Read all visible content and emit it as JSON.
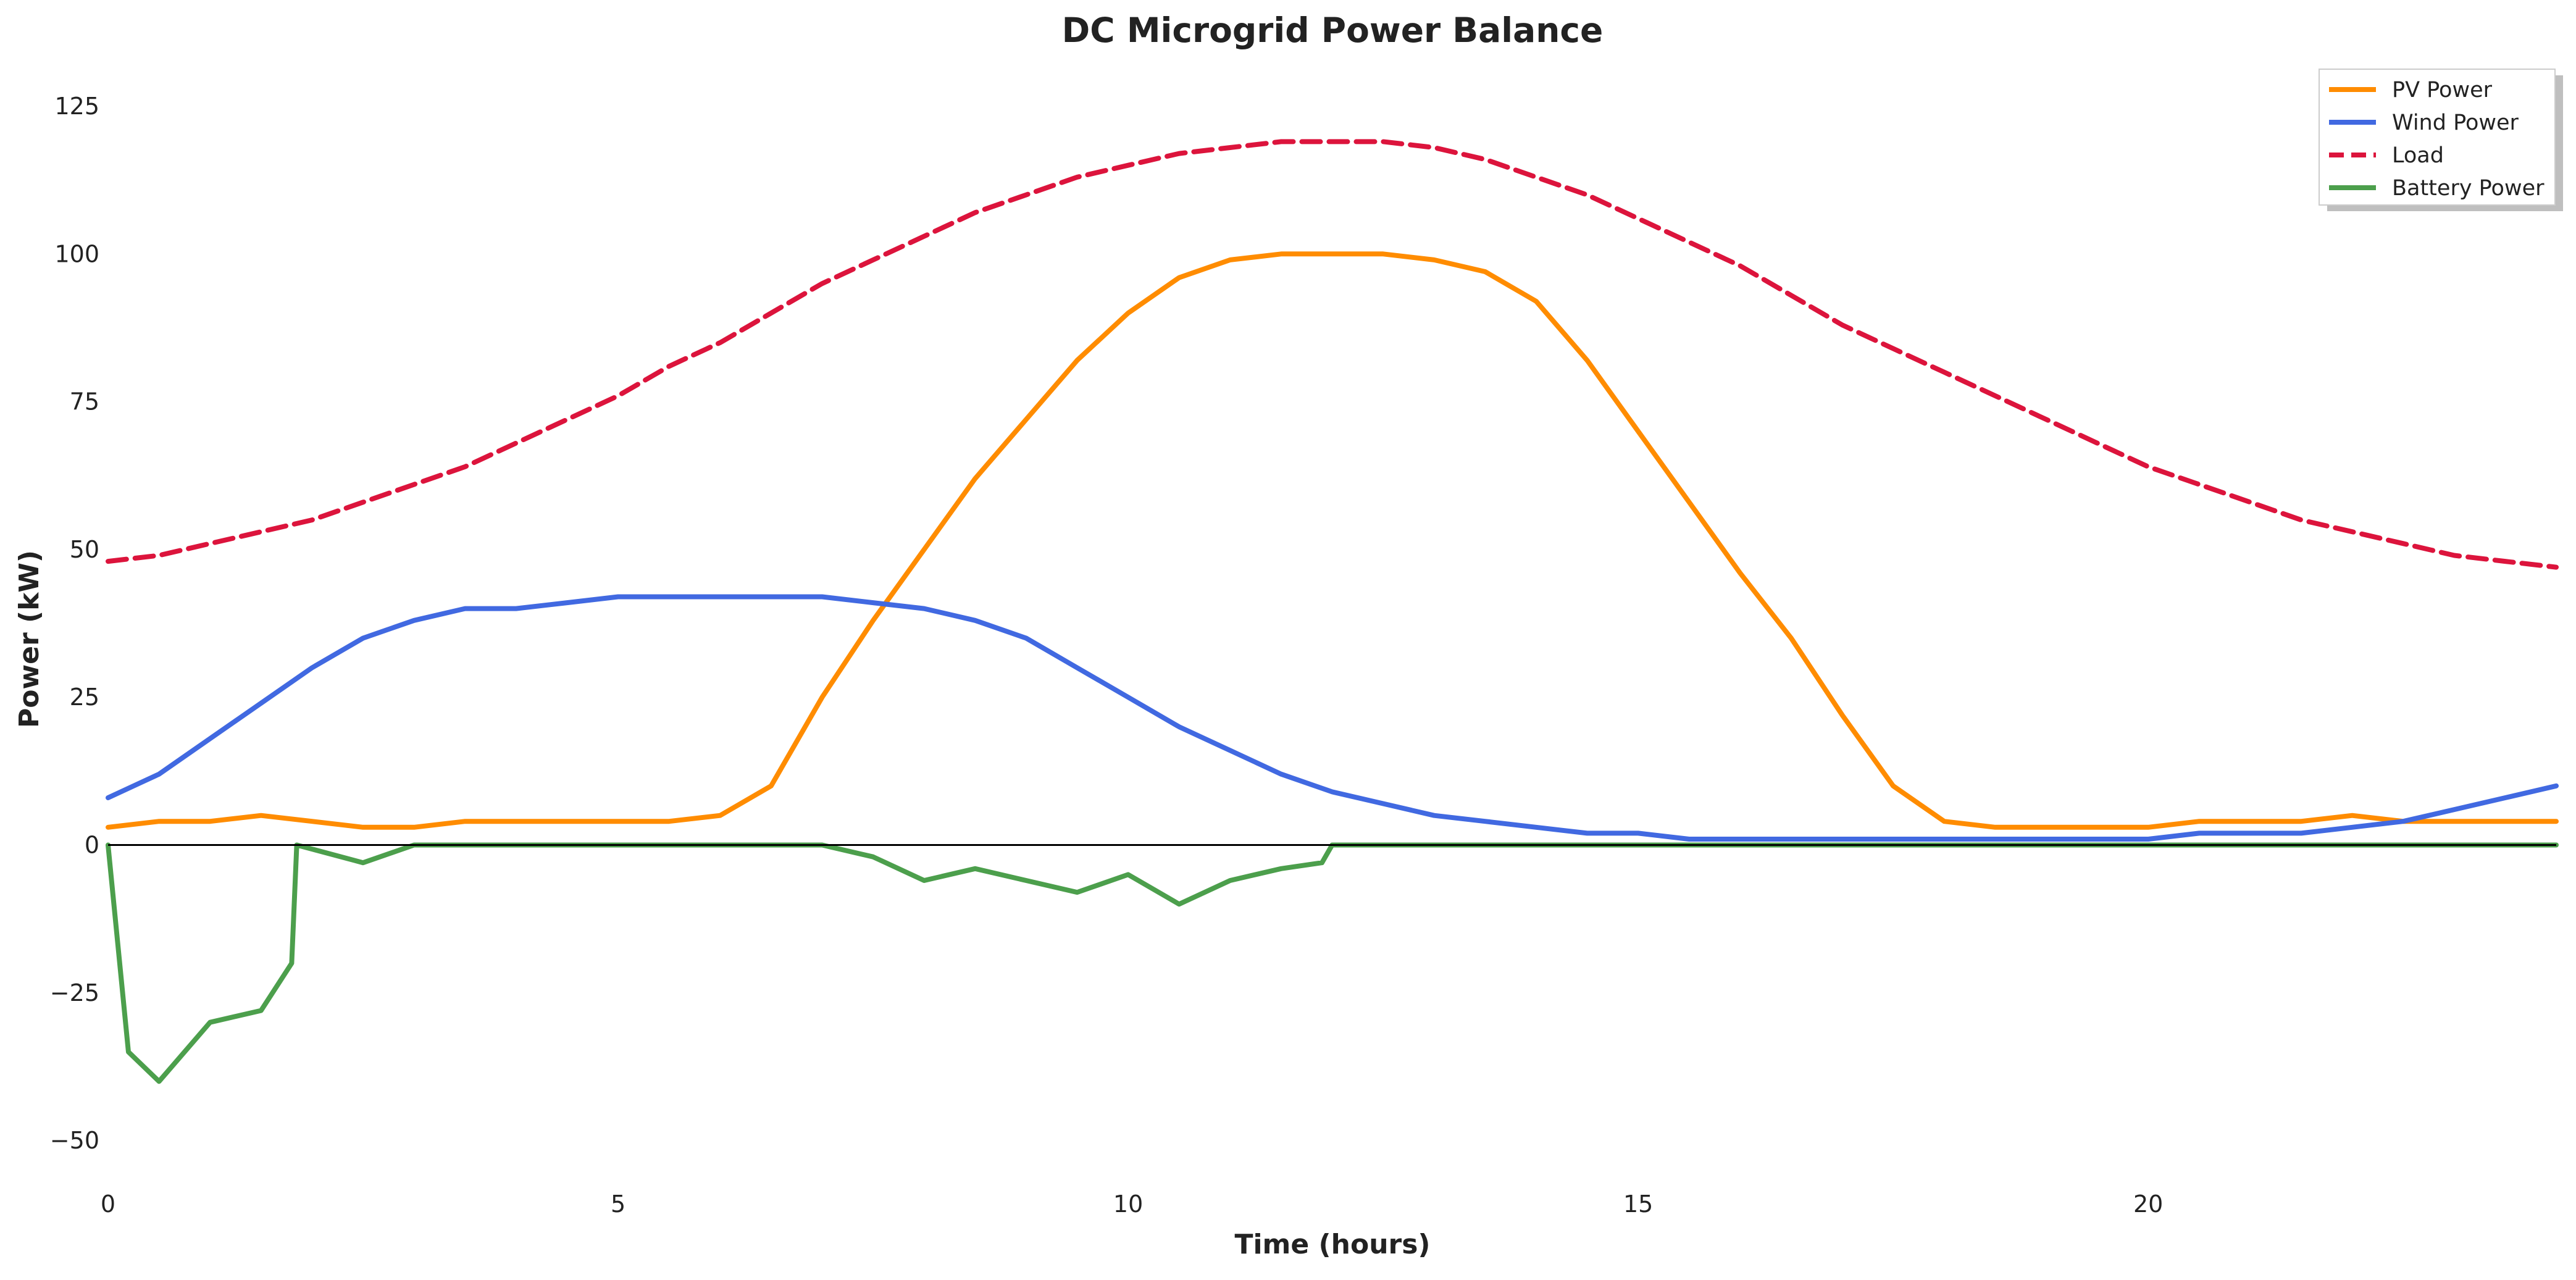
{
  "chart_data": {
    "type": "line",
    "title": "DC Microgrid Power Balance",
    "xlabel": "Time (hours)",
    "ylabel": "Power (kW)",
    "xlim": [
      0,
      24
    ],
    "ylim": [
      -55,
      132
    ],
    "xticks": [
      0,
      5,
      10,
      15,
      20
    ],
    "xtick_labels": [
      "0",
      "5",
      "10",
      "15",
      "20"
    ],
    "yticks": [
      -50,
      -25,
      0,
      25,
      50,
      75,
      100,
      125
    ],
    "ytick_labels": [
      "−50",
      "−25",
      "0",
      "25",
      "50",
      "75",
      "100",
      "125"
    ],
    "grid": false,
    "legend_position": "top-right",
    "zero_line_color": "#000000",
    "series": [
      {
        "name": "PV Power",
        "color": "#ff8c00",
        "style": "solid",
        "x": [
          0,
          0.5,
          1,
          1.5,
          2,
          2.5,
          3,
          3.5,
          4,
          4.5,
          5,
          5.5,
          6,
          6.5,
          7,
          7.5,
          8,
          8.5,
          9,
          9.5,
          10,
          10.5,
          11,
          11.5,
          12,
          12.5,
          13,
          13.5,
          14,
          14.5,
          15,
          15.5,
          16,
          16.5,
          17,
          17.5,
          18,
          18.5,
          19,
          19.5,
          20,
          20.5,
          21,
          21.5,
          22,
          22.5,
          23,
          23.5,
          24
        ],
        "values": [
          3,
          4,
          4,
          5,
          4,
          3,
          3,
          4,
          4,
          4,
          4,
          4,
          5,
          10,
          25,
          38,
          50,
          62,
          72,
          82,
          90,
          96,
          99,
          100,
          100,
          100,
          99,
          97,
          92,
          82,
          70,
          58,
          46,
          35,
          22,
          10,
          4,
          3,
          3,
          3,
          3,
          4,
          4,
          4,
          5,
          4,
          4,
          4,
          4
        ]
      },
      {
        "name": "Wind Power",
        "color": "#4169e1",
        "style": "solid",
        "x": [
          0,
          0.5,
          1,
          1.5,
          2,
          2.5,
          3,
          3.5,
          4,
          4.5,
          5,
          5.5,
          6,
          6.5,
          7,
          7.5,
          8,
          8.5,
          9,
          9.5,
          10,
          10.5,
          11,
          11.5,
          12,
          12.5,
          13,
          13.5,
          14,
          14.5,
          15,
          15.5,
          16,
          16.5,
          17,
          17.5,
          18,
          18.5,
          19,
          19.5,
          20,
          20.5,
          21,
          21.5,
          22,
          22.5,
          23,
          23.5,
          24
        ],
        "values": [
          8,
          12,
          18,
          24,
          30,
          35,
          38,
          40,
          40,
          41,
          42,
          42,
          42,
          42,
          42,
          41,
          40,
          38,
          35,
          30,
          25,
          20,
          16,
          12,
          9,
          7,
          5,
          4,
          3,
          2,
          2,
          1,
          1,
          1,
          1,
          1,
          1,
          1,
          1,
          1,
          1,
          2,
          2,
          2,
          3,
          4,
          6,
          8,
          10
        ]
      },
      {
        "name": "Load",
        "color": "#dc143c",
        "style": "dashed",
        "x": [
          0,
          0.5,
          1,
          1.5,
          2,
          2.5,
          3,
          3.5,
          4,
          4.5,
          5,
          5.5,
          6,
          6.5,
          7,
          7.5,
          8,
          8.5,
          9,
          9.5,
          10,
          10.5,
          11,
          11.5,
          12,
          12.5,
          13,
          13.5,
          14,
          14.5,
          15,
          15.5,
          16,
          16.5,
          17,
          17.5,
          18,
          18.5,
          19,
          19.5,
          20,
          20.5,
          21,
          21.5,
          22,
          22.5,
          23,
          23.5,
          24
        ],
        "values": [
          48,
          49,
          51,
          53,
          55,
          58,
          61,
          64,
          68,
          72,
          76,
          81,
          85,
          90,
          95,
          99,
          103,
          107,
          110,
          113,
          115,
          117,
          118,
          119,
          119,
          119,
          118,
          116,
          113,
          110,
          106,
          102,
          98,
          93,
          88,
          84,
          80,
          76,
          72,
          68,
          64,
          61,
          58,
          55,
          53,
          51,
          49,
          48,
          47
        ]
      },
      {
        "name": "Battery Power",
        "color": "#4c9f4c",
        "style": "solid",
        "x": [
          0,
          0.2,
          0.5,
          1,
          1.5,
          1.8,
          1.85,
          2.5,
          3,
          5,
          7,
          7.5,
          8,
          8.5,
          9,
          9.5,
          10,
          10.5,
          11,
          11.5,
          11.9,
          12,
          15,
          20,
          24
        ],
        "values": [
          0,
          -35,
          -40,
          -30,
          -28,
          -20,
          0,
          -3,
          0,
          0,
          0,
          -2,
          -6,
          -4,
          -6,
          -8,
          -5,
          -10,
          -6,
          -4,
          -3,
          0,
          0,
          0,
          0
        ]
      }
    ]
  }
}
